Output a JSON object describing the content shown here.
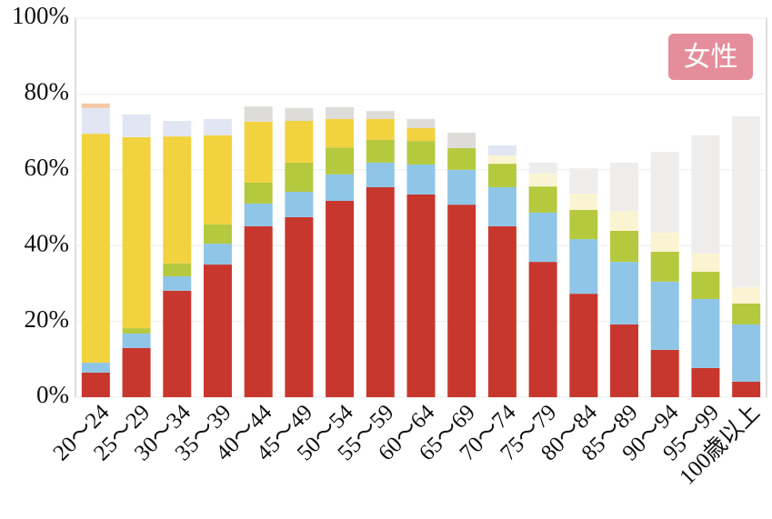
{
  "chart_data": {
    "type": "stacked_bar",
    "annotation": "女性",
    "categories": [
      "20～24",
      "25～29",
      "30～34",
      "35～39",
      "40～44",
      "45～49",
      "50～54",
      "55～59",
      "60～64",
      "65～69",
      "70～74",
      "75～79",
      "80～84",
      "85～89",
      "90～94",
      "95～99",
      "100歳以上"
    ],
    "series": [
      {
        "color": "#c8372d",
        "values": [
          6.5,
          13,
          28.1,
          35,
          45.1,
          47.5,
          51.8,
          55.4,
          53.5,
          50.8,
          45.1,
          35.7,
          27.3,
          19.2,
          12.5,
          7.7,
          4.1
        ]
      },
      {
        "color": "#8fc6e8",
        "values": [
          2.6,
          3.8,
          3.8,
          5.5,
          6,
          6.7,
          7,
          6.5,
          7.9,
          9.2,
          10.3,
          13,
          14.4,
          16.5,
          18,
          18.2,
          15.1
        ]
      },
      {
        "color": "#b5c93e",
        "values": [
          0,
          1.4,
          3.4,
          5.1,
          5.5,
          7.7,
          7.1,
          6,
          6.2,
          5.7,
          6.2,
          6.9,
          7.7,
          8.2,
          7.9,
          7.2,
          5.5
        ]
      },
      {
        "color": "#f2d33f",
        "values": [
          60.4,
          50.4,
          33.5,
          23.5,
          16.1,
          11,
          7.5,
          5.5,
          3.4,
          0,
          0,
          0,
          0,
          0,
          0,
          0,
          0
        ]
      },
      {
        "color": "#fbf4d2",
        "values": [
          0,
          0,
          0,
          0,
          0,
          0,
          0,
          0,
          0,
          0,
          2.2,
          3.4,
          4.3,
          5.3,
          5,
          4.8,
          4.3
        ]
      },
      {
        "color": "#e2e6f4",
        "values": [
          6.8,
          6,
          4.1,
          4.3,
          0,
          0,
          0,
          0,
          0,
          0,
          2.6,
          0,
          0,
          0,
          0,
          0,
          0
        ]
      },
      {
        "color": "#dedcd8",
        "values": [
          0,
          0,
          0,
          0,
          4,
          3.4,
          3.1,
          2.1,
          2.4,
          4.1,
          0,
          0,
          0,
          0,
          0,
          0,
          0
        ]
      },
      {
        "color": "#efecec",
        "values": [
          0,
          0,
          0,
          0,
          0,
          0,
          0,
          0,
          0,
          0,
          0,
          2.9,
          6.7,
          12.7,
          21.3,
          31.2,
          45.1
        ]
      },
      {
        "color": "#f6c8a8",
        "values": [
          1.2,
          0,
          0,
          0,
          0,
          0,
          0,
          0,
          0,
          0,
          0,
          0,
          0,
          0,
          0,
          0,
          0
        ]
      }
    ],
    "ylim": [
      0,
      100
    ],
    "yticks": [
      {
        "value": 0,
        "label": "0%"
      },
      {
        "value": 20,
        "label": "20%"
      },
      {
        "value": 40,
        "label": "40%"
      },
      {
        "value": 60,
        "label": "60%"
      },
      {
        "value": 80,
        "label": "80%"
      },
      {
        "value": 100,
        "label": "100%"
      }
    ],
    "grid": true
  }
}
